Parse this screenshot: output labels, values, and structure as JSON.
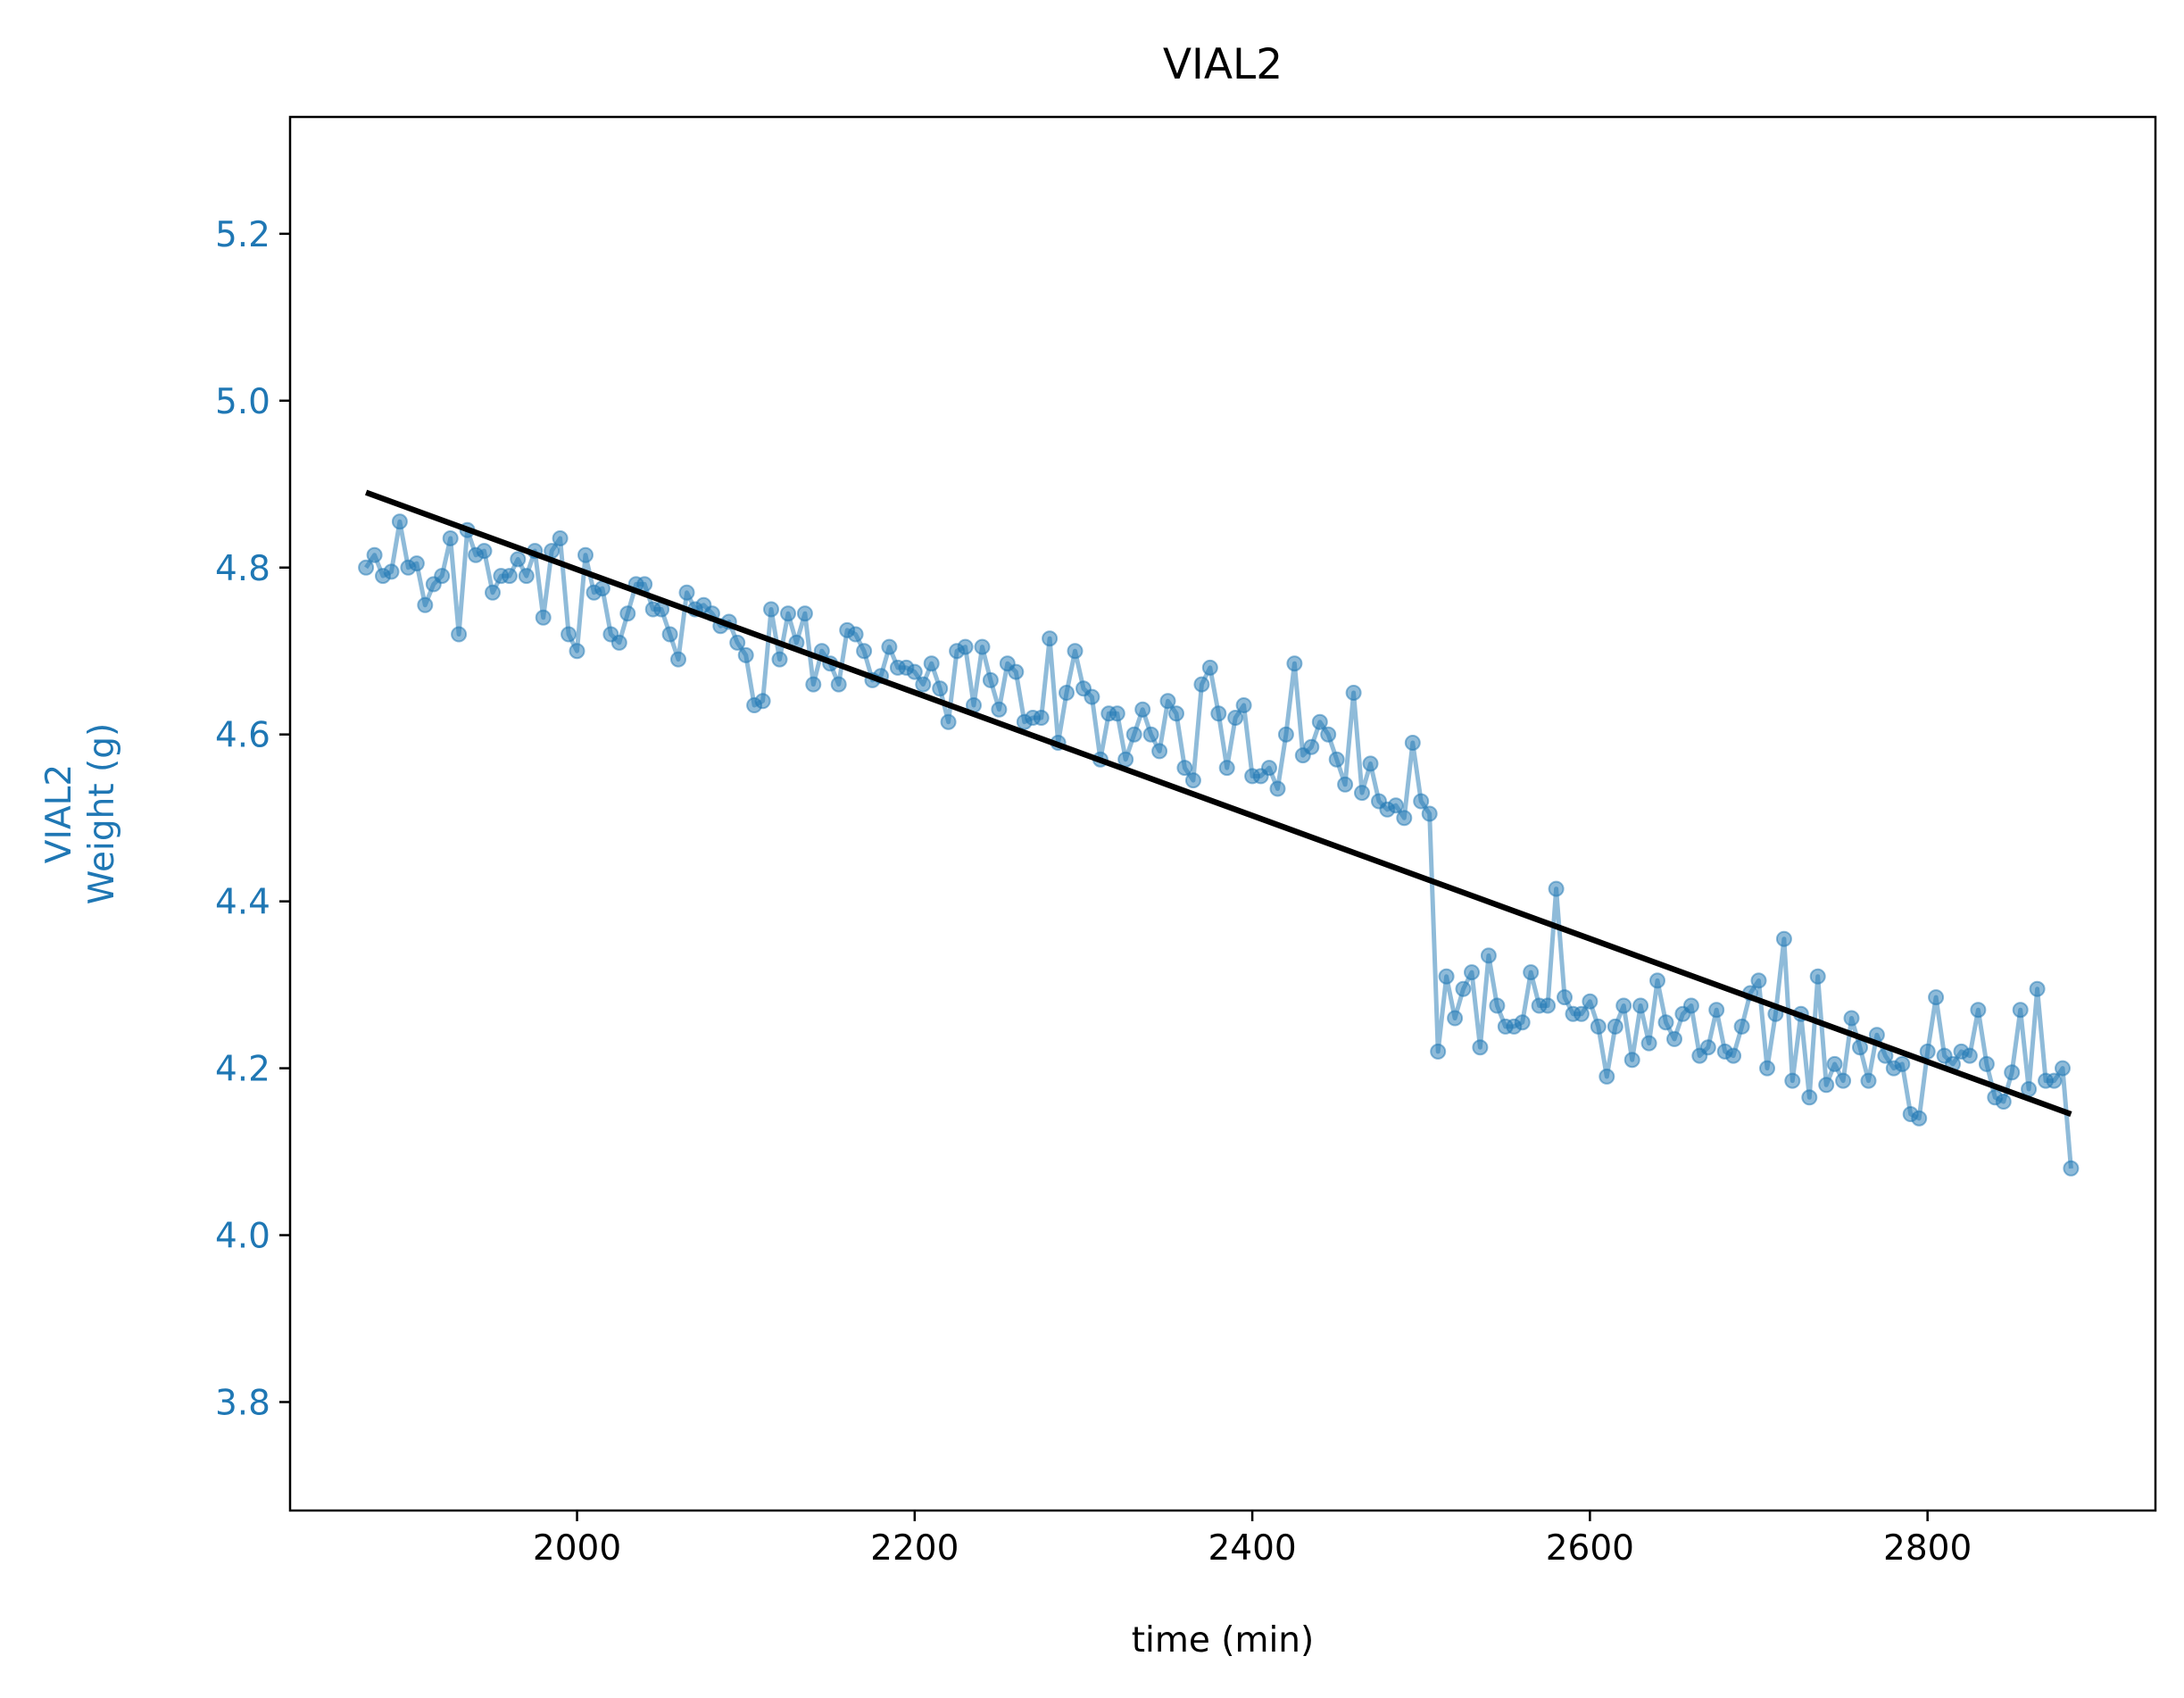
{
  "chart_data": {
    "type": "line",
    "title": "VIAL2",
    "xlabel": "time (min)",
    "ylabel_lines": [
      "VIAL2",
      "Weight (g)"
    ],
    "xlim": [
      1830,
      2935
    ],
    "ylim": [
      3.67,
      5.34
    ],
    "xticks": [
      2000,
      2200,
      2400,
      2600,
      2800
    ],
    "yticks": [
      3.8,
      4.0,
      4.2,
      4.4,
      4.6,
      4.8,
      5.0,
      5.2
    ],
    "ytick_labels": [
      "3.8",
      "4.0",
      "4.2",
      "4.4",
      "4.6",
      "4.8",
      "5.0",
      "5.2"
    ],
    "grid": false,
    "colors": {
      "series": "#1f77b4",
      "fit": "#000000",
      "ylabel": "#1f77b4",
      "yticks": "#1f77b4"
    },
    "fit_line": {
      "x": [
        1875,
        2885
      ],
      "y": [
        4.89,
        4.145
      ]
    },
    "series": [
      {
        "x": [
          1875,
          1880,
          1885,
          1890,
          1895,
          1900,
          1905,
          1910,
          1915,
          1920,
          1925,
          1930,
          1935,
          1940,
          1945,
          1950,
          1955,
          1960,
          1965,
          1970,
          1975,
          1980,
          1985,
          1990,
          1995,
          2000,
          2005,
          2010,
          2015,
          2020,
          2025,
          2030,
          2035,
          2040,
          2045,
          2050,
          2055,
          2060,
          2065,
          2070,
          2075,
          2080,
          2085,
          2090,
          2095,
          2100,
          2105,
          2110,
          2115,
          2120,
          2125,
          2130,
          2135,
          2140,
          2145,
          2150,
          2155,
          2160,
          2165,
          2170,
          2175,
          2180,
          2185,
          2190,
          2195,
          2200,
          2205,
          2210,
          2215,
          2220,
          2225,
          2230,
          2235,
          2240,
          2245,
          2250,
          2255,
          2260,
          2265,
          2270,
          2275,
          2280,
          2285,
          2290,
          2295,
          2300,
          2305,
          2310,
          2315,
          2320,
          2325,
          2330,
          2335,
          2340,
          2345,
          2350,
          2355,
          2360,
          2365,
          2370,
          2375,
          2380,
          2385,
          2390,
          2395,
          2400,
          2405,
          2410,
          2415,
          2420,
          2425,
          2430,
          2435,
          2440,
          2445,
          2450,
          2455,
          2460,
          2465,
          2470,
          2475,
          2480,
          2485,
          2490,
          2495,
          2500,
          2505,
          2510,
          2515,
          2520,
          2525,
          2530,
          2535,
          2540,
          2545,
          2550,
          2555,
          2560,
          2565,
          2570,
          2575,
          2580,
          2585,
          2590,
          2595,
          2600,
          2605,
          2610,
          2615,
          2620,
          2625,
          2630,
          2635,
          2640,
          2645,
          2650,
          2655,
          2660,
          2665,
          2670,
          2675,
          2680,
          2685,
          2690,
          2695,
          2700,
          2705,
          2710,
          2715,
          2720,
          2725,
          2730,
          2735,
          2740,
          2745,
          2750,
          2755,
          2760,
          2765,
          2770,
          2775,
          2780,
          2785,
          2790,
          2795,
          2800,
          2805,
          2810,
          2815,
          2820,
          2825,
          2830,
          2835,
          2840,
          2845,
          2850,
          2855,
          2860,
          2865,
          2870,
          2875,
          2880,
          2885
        ],
        "y": [
          4.8,
          4.815,
          4.79,
          4.795,
          4.855,
          4.8,
          4.805,
          4.755,
          4.78,
          4.79,
          4.835,
          4.72,
          4.845,
          4.815,
          4.82,
          4.77,
          4.79,
          4.79,
          4.81,
          4.79,
          4.82,
          4.74,
          4.82,
          4.835,
          4.72,
          4.7,
          4.815,
          4.77,
          4.775,
          4.72,
          4.71,
          4.745,
          4.78,
          4.78,
          4.75,
          4.75,
          4.72,
          4.69,
          4.77,
          4.75,
          4.755,
          4.745,
          4.73,
          4.735,
          4.71,
          4.695,
          4.635,
          4.64,
          4.75,
          4.69,
          4.745,
          4.71,
          4.745,
          4.66,
          4.7,
          4.685,
          4.66,
          4.725,
          4.72,
          4.7,
          4.665,
          4.67,
          4.705,
          4.68,
          4.68,
          4.675,
          4.66,
          4.685,
          4.655,
          4.615,
          4.7,
          4.705,
          4.635,
          4.705,
          4.665,
          4.63,
          4.685,
          4.675,
          4.615,
          4.62,
          4.62,
          4.715,
          4.59,
          4.65,
          4.7,
          4.655,
          4.645,
          4.57,
          4.625,
          4.625,
          4.57,
          4.6,
          4.63,
          4.6,
          4.58,
          4.64,
          4.625,
          4.56,
          4.545,
          4.66,
          4.68,
          4.625,
          4.56,
          4.62,
          4.635,
          4.55,
          4.55,
          4.56,
          4.535,
          4.6,
          4.685,
          4.575,
          4.585,
          4.615,
          4.6,
          4.57,
          4.54,
          4.65,
          4.53,
          4.565,
          4.52,
          4.51,
          4.515,
          4.5,
          4.59,
          4.52,
          4.505,
          4.22,
          4.31,
          4.26,
          4.295,
          4.315,
          4.225,
          4.335,
          4.275,
          4.25,
          4.25,
          4.255,
          4.315,
          4.275,
          4.275,
          4.415,
          4.285,
          4.265,
          4.265,
          4.28,
          4.25,
          4.19,
          4.25,
          4.275,
          4.21,
          4.275,
          4.23,
          4.305,
          4.255,
          4.235,
          4.265,
          4.275,
          4.215,
          4.225,
          4.27,
          4.22,
          4.215,
          4.25,
          4.29,
          4.305,
          4.2,
          4.265,
          4.355,
          4.185,
          4.265,
          4.165,
          4.31,
          4.18,
          4.205,
          4.185,
          4.26,
          4.225,
          4.185,
          4.24,
          4.215,
          4.2,
          4.205,
          4.145,
          4.14,
          4.22,
          4.285,
          4.215,
          4.205,
          4.22,
          4.215,
          4.27,
          4.205,
          4.165,
          4.16,
          4.195,
          4.27,
          4.175,
          4.295,
          4.185,
          4.185,
          4.2,
          4.08
        ]
      }
    ]
  }
}
